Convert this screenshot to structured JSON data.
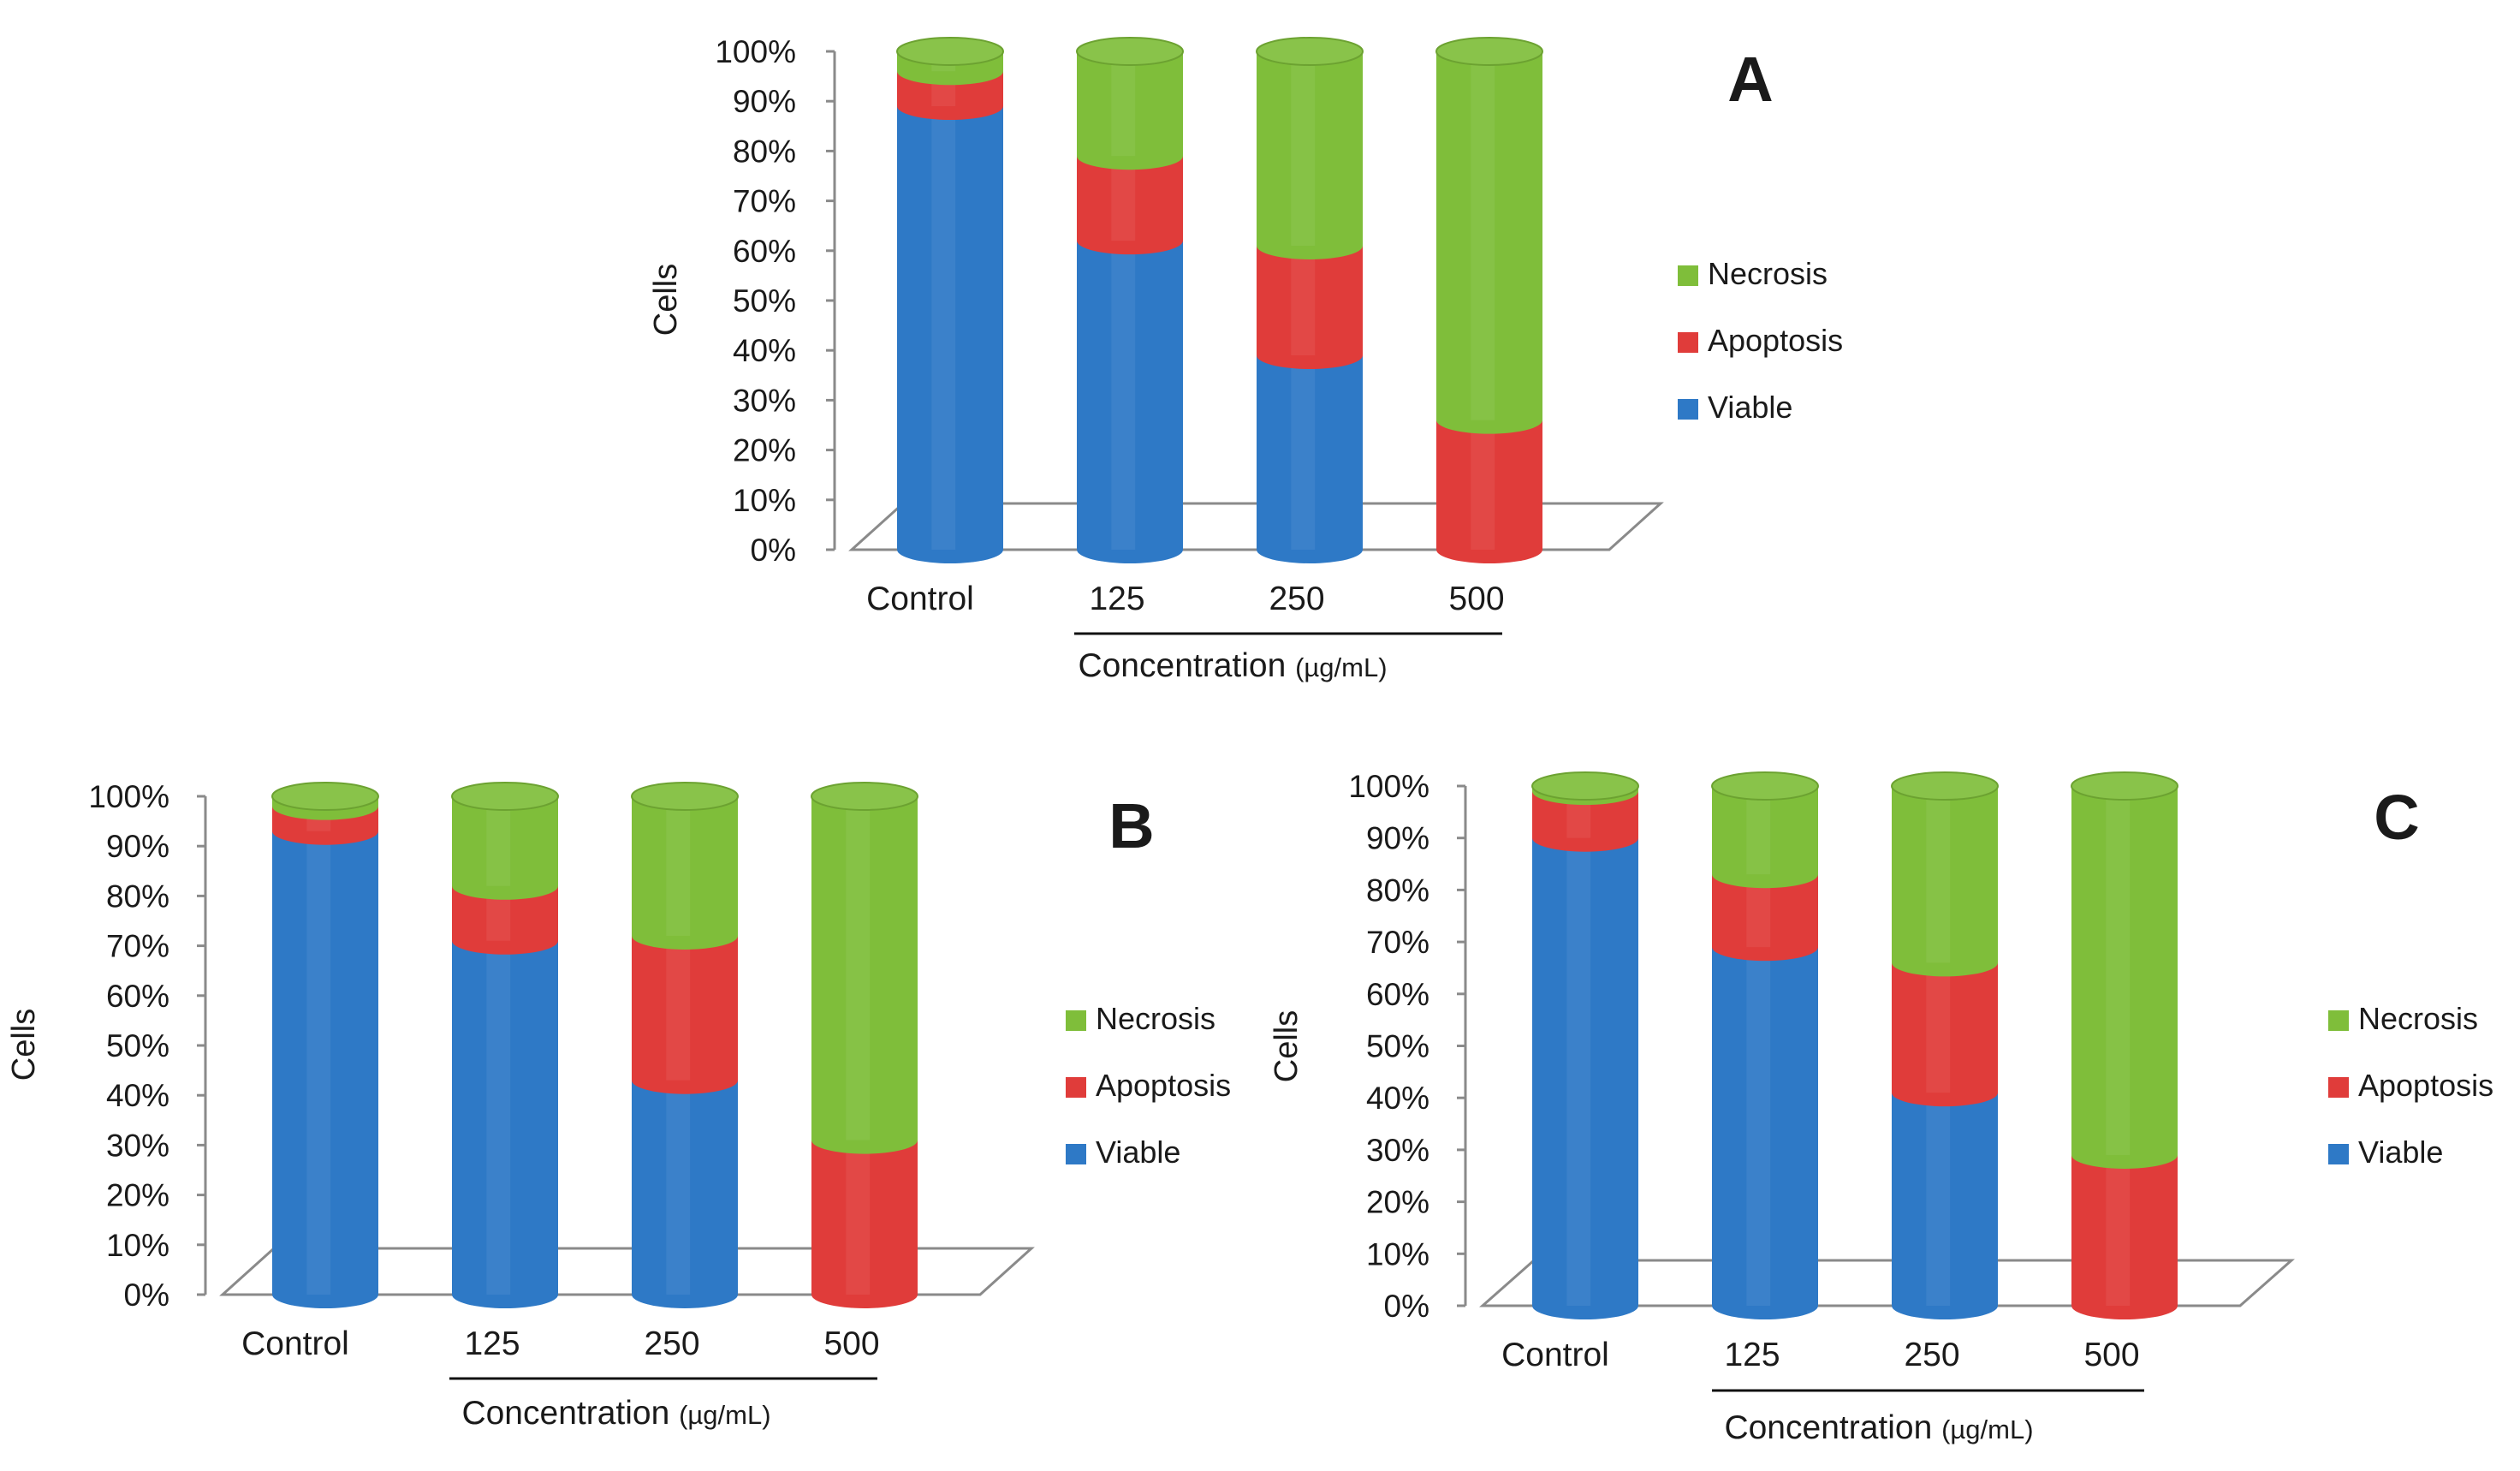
{
  "colors": {
    "viable": "#2e79c6",
    "apoptosis": "#e03c3a",
    "necrosis": "#7fbe3a",
    "axis": "#8a8a8a",
    "text": "#1a1a1a"
  },
  "chart_data": [
    {
      "type": "bar",
      "panel_label": "A",
      "ylabel": "Cells",
      "xlabel_main": "Concentration",
      "xlabel_unit": "(µg/mL)",
      "categories": [
        "Control",
        "125",
        "250",
        "500"
      ],
      "ylim": [
        0,
        100
      ],
      "yticks": [
        "0%",
        "10%",
        "20%",
        "30%",
        "40%",
        "50%",
        "60%",
        "70%",
        "80%",
        "90%",
        "100%"
      ],
      "series": [
        {
          "name": "Viable",
          "key": "viable",
          "values": [
            89,
            62,
            39,
            0
          ]
        },
        {
          "name": "Apoptosis",
          "key": "apoptosis",
          "values": [
            7,
            17,
            22,
            26
          ]
        },
        {
          "name": "Necrosis",
          "key": "necrosis",
          "values": [
            4,
            21,
            39,
            74
          ]
        }
      ],
      "legend": [
        "Necrosis",
        "Apoptosis",
        "Viable"
      ]
    },
    {
      "type": "bar",
      "panel_label": "B",
      "ylabel": "Cells",
      "xlabel_main": "Concentration",
      "xlabel_unit": "(µg/mL)",
      "categories": [
        "Control",
        "125",
        "250",
        "500"
      ],
      "ylim": [
        0,
        100
      ],
      "yticks": [
        "0%",
        "10%",
        "20%",
        "30%",
        "40%",
        "50%",
        "60%",
        "70%",
        "80%",
        "90%",
        "100%"
      ],
      "series": [
        {
          "name": "Viable",
          "key": "viable",
          "values": [
            93,
            71,
            43,
            0
          ]
        },
        {
          "name": "Apoptosis",
          "key": "apoptosis",
          "values": [
            5,
            11,
            29,
            31
          ]
        },
        {
          "name": "Necrosis",
          "key": "necrosis",
          "values": [
            2,
            18,
            28,
            69
          ]
        }
      ],
      "legend": [
        "Necrosis",
        "Apoptosis",
        "Viable"
      ]
    },
    {
      "type": "bar",
      "panel_label": "C",
      "ylabel": "Cells",
      "xlabel_main": "Concentration",
      "xlabel_unit": "(µg/mL)",
      "categories": [
        "Control",
        "125",
        "250",
        "500"
      ],
      "ylim": [
        0,
        100
      ],
      "yticks": [
        "0%",
        "10%",
        "20%",
        "30%",
        "40%",
        "50%",
        "60%",
        "70%",
        "80%",
        "90%",
        "100%"
      ],
      "series": [
        {
          "name": "Viable",
          "key": "viable",
          "values": [
            90,
            69,
            41,
            0
          ]
        },
        {
          "name": "Apoptosis",
          "key": "apoptosis",
          "values": [
            9,
            14,
            25,
            29
          ]
        },
        {
          "name": "Necrosis",
          "key": "necrosis",
          "values": [
            1,
            17,
            34,
            71
          ]
        }
      ],
      "legend": [
        "Necrosis",
        "Apoptosis",
        "Viable"
      ]
    }
  ]
}
